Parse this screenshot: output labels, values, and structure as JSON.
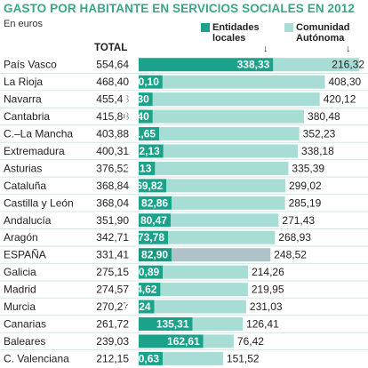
{
  "title": "GASTO POR HABITANTE EN SERVICIOS SOCIALES EN 2012",
  "subtitle": "En euros",
  "total_header": "TOTAL",
  "legend": {
    "local": {
      "line1": "Entidades",
      "line2": "locales",
      "color": "#1aa38a"
    },
    "autonoma": {
      "line1": "Comunidad",
      "line2": "Autónoma",
      "color": "#a8ddd5"
    },
    "arrow": "↓"
  },
  "colors": {
    "local": "#1aa38a",
    "autonoma": "#a8ddd5",
    "spain_local": "#18987f",
    "spain_autonoma": "#aec3c8",
    "row_divider": "#cfe8e2"
  },
  "chart_data": {
    "type": "bar",
    "stacked": true,
    "orientation": "horizontal",
    "title": "GASTO POR HABITANTE EN SERVICIOS SOCIALES EN 2012",
    "subtitle": "En euros",
    "categories": [
      "País Vasco",
      "La Rioja",
      "Navarra",
      "Cantabria",
      "C.–La Mancha",
      "Extremadura",
      "Asturias",
      "Cataluña",
      "Castilla y León",
      "Andalucía",
      "Aragón",
      "ESPAÑA",
      "Galicia",
      "Madrid",
      "Murcia",
      "Canarias",
      "Baleares",
      "C. Valenciana"
    ],
    "totals": [
      "554,64",
      "468,40",
      "455,43",
      "415,88",
      "403,88",
      "400,31",
      "376,52",
      "368,84",
      "368,04",
      "351,90",
      "342,71",
      "331,41",
      "275,15",
      "274,57",
      "270,27",
      "261,72",
      "239,03",
      "212,15"
    ],
    "series": [
      {
        "name": "Entidades locales",
        "values": [
          338.33,
          60.1,
          35.3,
          35.4,
          51.65,
          62.13,
          41.13,
          69.82,
          82.86,
          80.47,
          73.78,
          82.9,
          60.89,
          54.62,
          39.24,
          135.31,
          162.61,
          60.63
        ],
        "labels": [
          "338,33",
          "60,10",
          "35,30",
          "35,40",
          "51,65",
          "62,13",
          "41,13",
          "69,82",
          "82,86",
          "80,47",
          "73,78",
          "82,90",
          "60,89",
          "54,62",
          "39,24",
          "135,31",
          "162,61",
          "60,63"
        ]
      },
      {
        "name": "Comunidad Autónoma",
        "values": [
          216.32,
          408.3,
          420.12,
          380.48,
          352.23,
          338.18,
          335.39,
          299.02,
          285.19,
          271.43,
          268.93,
          248.52,
          214.26,
          219.95,
          231.03,
          126.41,
          76.42,
          151.52
        ],
        "labels": [
          "216,32",
          "408,30",
          "420,12",
          "380,48",
          "352,23",
          "338,18",
          "335,39",
          "299,02",
          "285,19",
          "271,43",
          "268,93",
          "248,52",
          "214,26",
          "219,95",
          "231,03",
          "126,41",
          "76,42",
          "151,52"
        ]
      }
    ],
    "highlight": "ESPAÑA",
    "xlim": [
      0,
      600
    ],
    "grid": false,
    "legend_position": "top-right"
  }
}
